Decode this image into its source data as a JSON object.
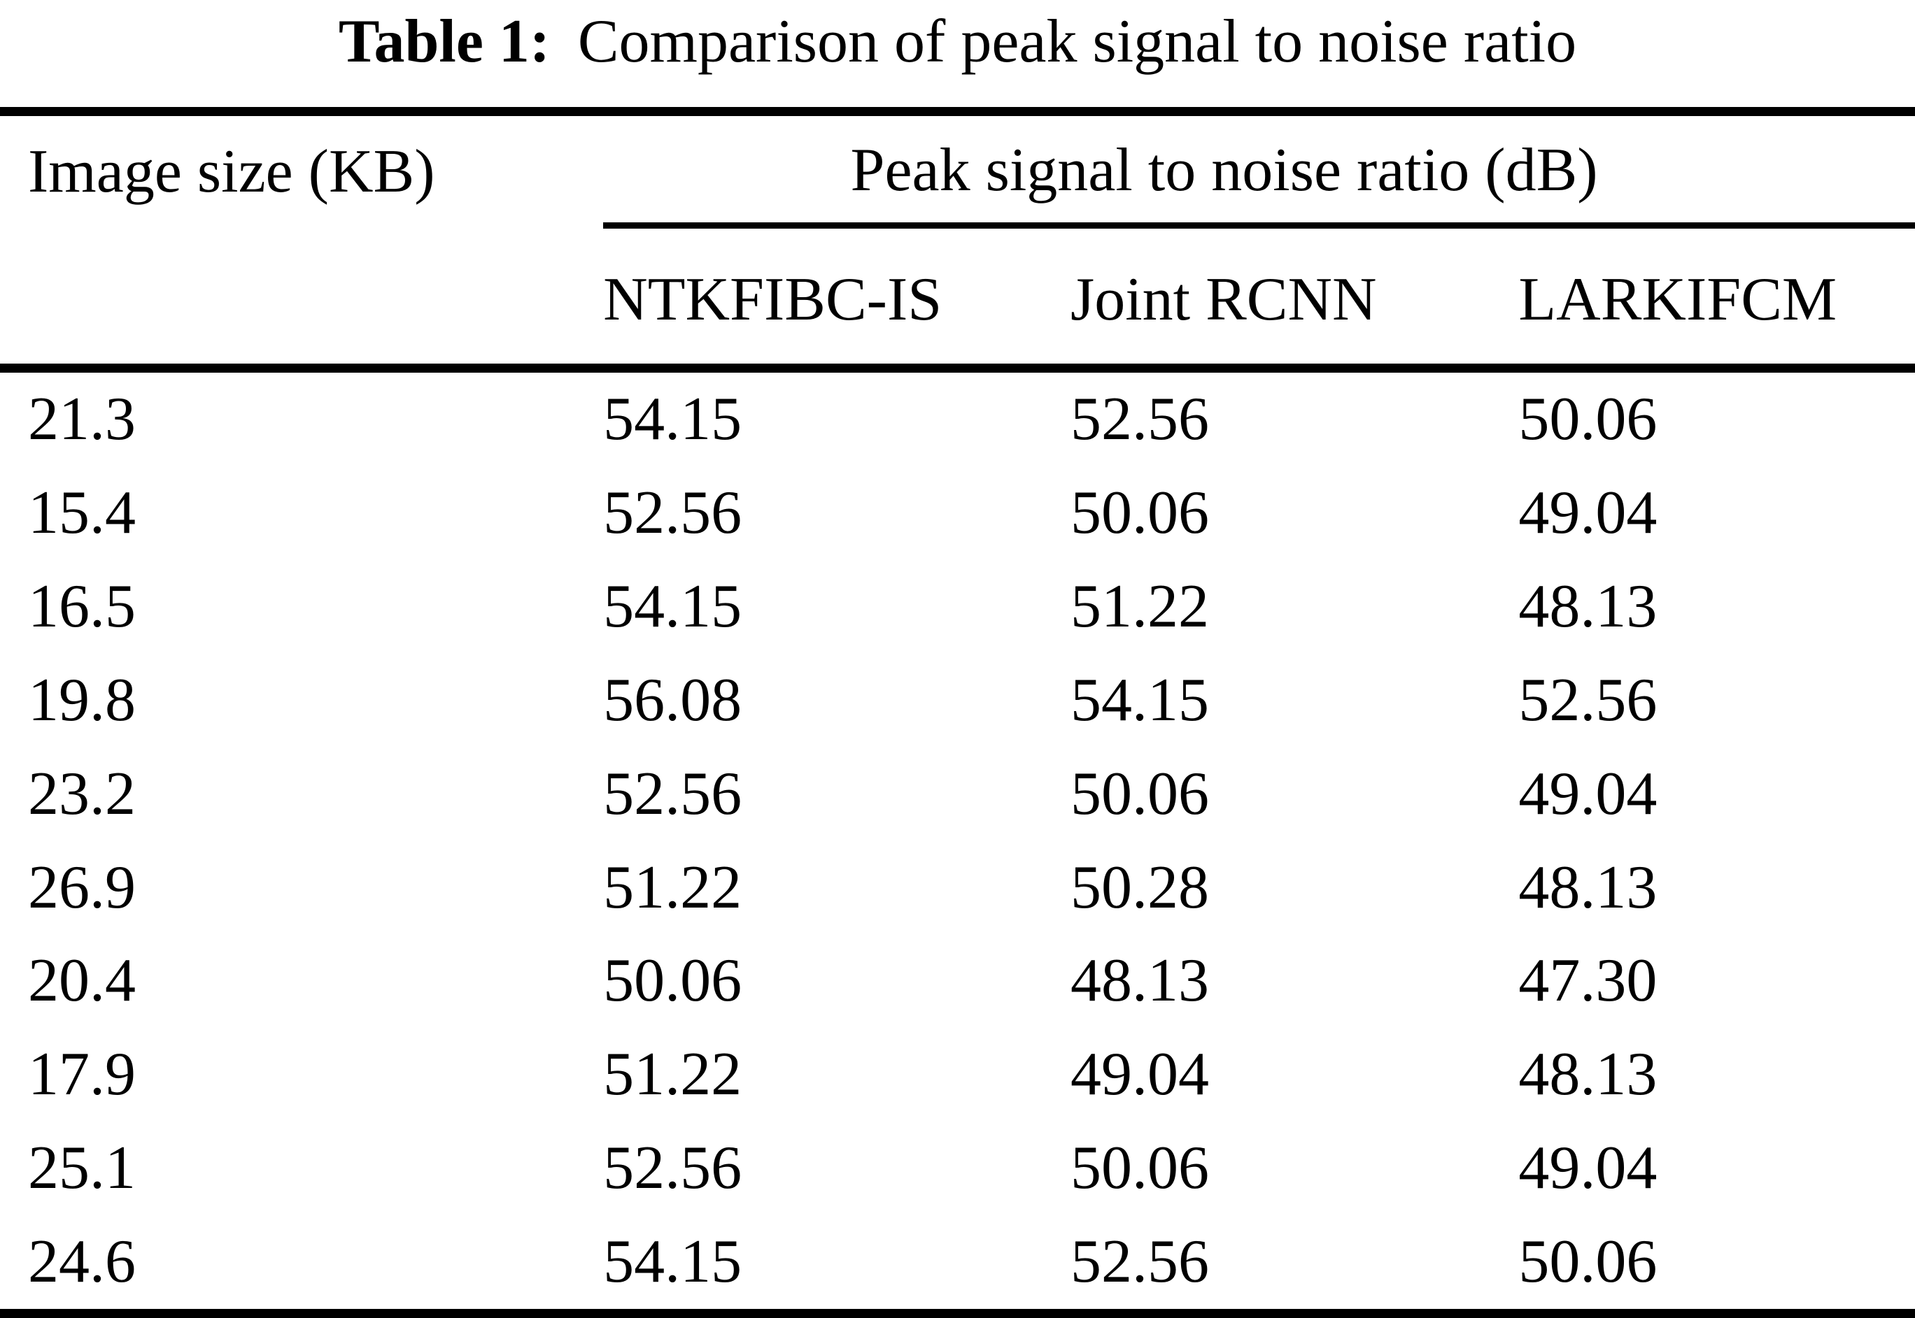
{
  "caption": {
    "label": "Table 1:",
    "text": "Comparison of peak signal to noise ratio"
  },
  "table": {
    "col1_header": "Image size (KB)",
    "span_header": "Peak signal to noise ratio (dB)",
    "method_headers": [
      "NTKFIBC-IS",
      "Joint RCNN",
      "LARKIFCM"
    ],
    "rows": [
      [
        "21.3",
        "54.15",
        "52.56",
        "50.06"
      ],
      [
        "15.4",
        "52.56",
        "50.06",
        "49.04"
      ],
      [
        "16.5",
        "54.15",
        "51.22",
        "48.13"
      ],
      [
        "19.8",
        "56.08",
        "54.15",
        "52.56"
      ],
      [
        "23.2",
        "52.56",
        "50.06",
        "49.04"
      ],
      [
        "26.9",
        "51.22",
        "50.28",
        "48.13"
      ],
      [
        "20.4",
        "50.06",
        "48.13",
        "47.30"
      ],
      [
        "17.9",
        "51.22",
        "49.04",
        "48.13"
      ],
      [
        "25.1",
        "52.56",
        "50.06",
        "49.04"
      ],
      [
        "24.6",
        "54.15",
        "52.56",
        "50.06"
      ]
    ]
  },
  "colors": {
    "text": "#000000",
    "background": "#ffffff",
    "rule": "#000000"
  }
}
